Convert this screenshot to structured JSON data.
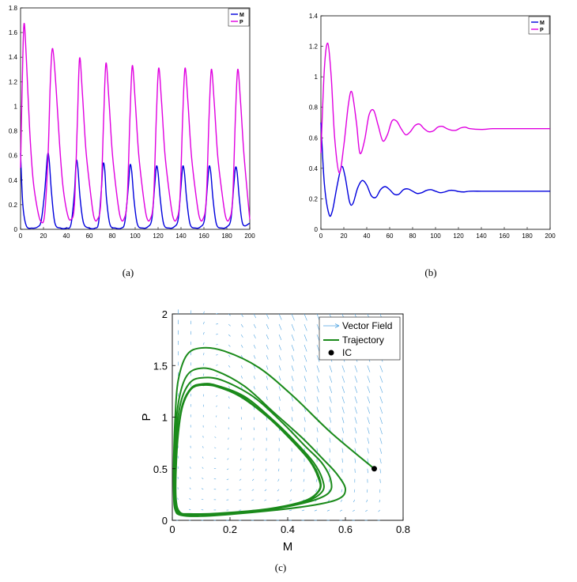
{
  "captions": {
    "a": "(a)",
    "b": "(b)",
    "c": "(c)"
  },
  "colors": {
    "M": "#0000dd",
    "P": "#e000e0",
    "trajectory": "#1a8a1a",
    "vector": "#4fa3e0",
    "ic": "#000000"
  },
  "chart_data": [
    {
      "id": "a",
      "type": "line",
      "xlim": [
        0,
        200
      ],
      "ylim": [
        0,
        1.8
      ],
      "xticks": [
        0,
        20,
        40,
        60,
        80,
        100,
        120,
        140,
        160,
        180,
        200
      ],
      "yticks": [
        0,
        0.2,
        0.4,
        0.6,
        0.8,
        1,
        1.2,
        1.4,
        1.6,
        1.8
      ],
      "legend": "top-right",
      "series": [
        {
          "name": "M",
          "color": "#0000dd",
          "x": [
            0,
            2,
            5,
            10,
            15,
            18,
            21,
            23.5,
            25,
            27,
            30,
            35,
            40,
            44,
            47,
            48.5,
            50,
            52,
            55,
            60,
            65,
            68,
            70.5,
            72,
            73.5,
            75,
            78,
            83,
            88,
            91,
            94,
            95.5,
            97,
            99,
            102,
            107,
            111,
            114.5,
            117,
            118.5,
            120,
            122,
            125,
            130,
            134,
            137.5,
            140,
            141.5,
            143,
            145,
            148,
            153,
            157,
            160.5,
            163,
            164.5,
            166,
            168,
            171,
            176,
            180,
            183.5,
            186,
            187.5,
            189,
            191,
            194,
            200
          ],
          "y": [
            0.62,
            0.2,
            0.03,
            0.01,
            0.02,
            0.07,
            0.3,
            0.6,
            0.56,
            0.3,
            0.05,
            0.01,
            0.01,
            0.04,
            0.3,
            0.55,
            0.5,
            0.25,
            0.05,
            0.01,
            0.01,
            0.05,
            0.32,
            0.53,
            0.48,
            0.25,
            0.04,
            0.01,
            0.01,
            0.06,
            0.34,
            0.52,
            0.47,
            0.24,
            0.04,
            0.01,
            0.02,
            0.08,
            0.35,
            0.51,
            0.46,
            0.24,
            0.04,
            0.01,
            0.02,
            0.08,
            0.35,
            0.51,
            0.46,
            0.24,
            0.04,
            0.01,
            0.02,
            0.08,
            0.35,
            0.51,
            0.46,
            0.24,
            0.04,
            0.01,
            0.02,
            0.08,
            0.35,
            0.5,
            0.46,
            0.24,
            0.04,
            0.05
          ]
        },
        {
          "name": "P",
          "color": "#e000e0",
          "x": [
            0,
            1.5,
            3,
            5,
            8,
            11,
            15,
            18,
            21,
            24,
            26,
            28,
            31,
            34,
            37,
            41,
            44,
            47,
            49.5,
            51.5,
            54,
            57,
            61,
            64,
            67,
            70,
            72.5,
            74.5,
            77,
            80,
            84,
            87,
            90,
            93,
            95.5,
            97.5,
            100,
            103,
            107,
            110,
            113,
            116,
            118.5,
            120.5,
            123,
            126,
            130,
            133,
            136,
            139,
            141.5,
            143.5,
            146,
            149,
            153,
            156,
            159,
            162,
            164.5,
            166.5,
            169,
            172,
            176,
            179,
            182,
            185,
            187.5,
            189.5,
            192,
            195,
            200
          ],
          "y": [
            0.5,
            1.2,
            1.67,
            1.4,
            0.8,
            0.4,
            0.15,
            0.06,
            0.12,
            0.6,
            1.2,
            1.47,
            1.15,
            0.7,
            0.35,
            0.12,
            0.08,
            0.2,
            0.85,
            1.39,
            1.1,
            0.65,
            0.3,
            0.1,
            0.08,
            0.22,
            0.9,
            1.35,
            1.07,
            0.63,
            0.28,
            0.1,
            0.08,
            0.24,
            0.92,
            1.33,
            1.05,
            0.62,
            0.28,
            0.1,
            0.08,
            0.24,
            0.92,
            1.31,
            1.04,
            0.61,
            0.28,
            0.1,
            0.08,
            0.24,
            0.92,
            1.31,
            1.04,
            0.61,
            0.28,
            0.1,
            0.08,
            0.24,
            0.92,
            1.3,
            1.03,
            0.6,
            0.28,
            0.1,
            0.08,
            0.24,
            0.92,
            1.3,
            1.03,
            0.6,
            0.08
          ]
        }
      ]
    },
    {
      "id": "b",
      "type": "line",
      "xlim": [
        0,
        200
      ],
      "ylim": [
        0,
        1.4
      ],
      "xticks": [
        0,
        20,
        40,
        60,
        80,
        100,
        120,
        140,
        160,
        180,
        200
      ],
      "yticks": [
        0,
        0.2,
        0.4,
        0.6,
        0.8,
        1,
        1.2,
        1.4
      ],
      "legend": "top-right",
      "series": [
        {
          "name": "M",
          "color": "#0000dd",
          "x": [
            0,
            3,
            7,
            10,
            14,
            18,
            21,
            25,
            28,
            32,
            36,
            40,
            44,
            48,
            52,
            56,
            60,
            64,
            68,
            72,
            76,
            80,
            84,
            88,
            92,
            96,
            100,
            104,
            108,
            112,
            116,
            120,
            125,
            130,
            140,
            150,
            160,
            170,
            180,
            190,
            200
          ],
          "y": [
            0.7,
            0.3,
            0.1,
            0.12,
            0.28,
            0.41,
            0.35,
            0.18,
            0.17,
            0.27,
            0.32,
            0.29,
            0.22,
            0.21,
            0.26,
            0.28,
            0.26,
            0.23,
            0.23,
            0.26,
            0.265,
            0.25,
            0.235,
            0.24,
            0.255,
            0.26,
            0.25,
            0.24,
            0.245,
            0.255,
            0.255,
            0.248,
            0.245,
            0.25,
            0.25,
            0.25,
            0.25,
            0.25,
            0.25,
            0.25,
            0.25
          ],
          "smooth": true
        },
        {
          "name": "P",
          "color": "#e000e0",
          "x": [
            0,
            3,
            6,
            9,
            12,
            16,
            20,
            24,
            27,
            31,
            34,
            38,
            42,
            46,
            50,
            54,
            58,
            62,
            66,
            70,
            74,
            78,
            82,
            86,
            90,
            94,
            98,
            102,
            106,
            110,
            114,
            118,
            122,
            126,
            130,
            140,
            150,
            160,
            180,
            200
          ],
          "y": [
            0.5,
            1.05,
            1.22,
            1.0,
            0.6,
            0.37,
            0.55,
            0.82,
            0.9,
            0.7,
            0.5,
            0.58,
            0.75,
            0.78,
            0.68,
            0.58,
            0.62,
            0.71,
            0.71,
            0.66,
            0.62,
            0.64,
            0.68,
            0.69,
            0.66,
            0.64,
            0.645,
            0.67,
            0.675,
            0.66,
            0.65,
            0.65,
            0.665,
            0.67,
            0.66,
            0.655,
            0.66,
            0.66,
            0.66,
            0.66
          ],
          "smooth": true
        }
      ]
    },
    {
      "id": "c",
      "type": "line",
      "xlabel": "M",
      "ylabel": "P",
      "xlim": [
        0,
        0.8
      ],
      "ylim": [
        0,
        2
      ],
      "xticks": [
        0,
        0.2,
        0.4,
        0.6,
        0.8
      ],
      "yticks": [
        0,
        0.5,
        1,
        1.5,
        2
      ],
      "legend": "top-right",
      "legend_entries": [
        "Vector Field",
        "Trajectory",
        "IC"
      ],
      "initial_condition": [
        0.7,
        0.5
      ],
      "trajectory": [
        [
          0.7,
          0.5
        ],
        [
          0.55,
          0.85
        ],
        [
          0.42,
          1.2
        ],
        [
          0.3,
          1.48
        ],
        [
          0.18,
          1.64
        ],
        [
          0.1,
          1.67
        ],
        [
          0.05,
          1.6
        ],
        [
          0.02,
          1.35
        ],
        [
          0.01,
          1.0
        ],
        [
          0.005,
          0.6
        ],
        [
          0.005,
          0.25
        ],
        [
          0.01,
          0.1
        ],
        [
          0.03,
          0.05
        ],
        [
          0.1,
          0.04
        ],
        [
          0.25,
          0.07
        ],
        [
          0.45,
          0.13
        ],
        [
          0.57,
          0.2
        ],
        [
          0.6,
          0.3
        ],
        [
          0.57,
          0.45
        ],
        [
          0.52,
          0.6
        ],
        [
          0.45,
          0.8
        ],
        [
          0.35,
          1.05
        ],
        [
          0.25,
          1.3
        ],
        [
          0.15,
          1.45
        ],
        [
          0.09,
          1.47
        ],
        [
          0.05,
          1.4
        ],
        [
          0.025,
          1.2
        ],
        [
          0.012,
          0.9
        ],
        [
          0.008,
          0.5
        ],
        [
          0.008,
          0.2
        ],
        [
          0.015,
          0.08
        ],
        [
          0.04,
          0.05
        ],
        [
          0.12,
          0.05
        ],
        [
          0.3,
          0.09
        ],
        [
          0.46,
          0.17
        ],
        [
          0.54,
          0.26
        ],
        [
          0.55,
          0.38
        ],
        [
          0.52,
          0.55
        ],
        [
          0.46,
          0.72
        ],
        [
          0.38,
          0.95
        ],
        [
          0.28,
          1.2
        ],
        [
          0.17,
          1.36
        ],
        [
          0.1,
          1.38
        ],
        [
          0.06,
          1.33
        ],
        [
          0.03,
          1.15
        ],
        [
          0.015,
          0.85
        ],
        [
          0.01,
          0.5
        ],
        [
          0.01,
          0.2
        ],
        [
          0.02,
          0.08
        ],
        [
          0.05,
          0.055
        ],
        [
          0.15,
          0.06
        ],
        [
          0.32,
          0.1
        ],
        [
          0.46,
          0.18
        ],
        [
          0.52,
          0.28
        ],
        [
          0.52,
          0.4
        ],
        [
          0.49,
          0.56
        ],
        [
          0.43,
          0.75
        ],
        [
          0.35,
          0.97
        ],
        [
          0.25,
          1.2
        ],
        [
          0.15,
          1.31
        ],
        [
          0.1,
          1.32
        ],
        [
          0.065,
          1.28
        ],
        [
          0.035,
          1.12
        ],
        [
          0.02,
          0.85
        ],
        [
          0.012,
          0.5
        ],
        [
          0.012,
          0.2
        ],
        [
          0.025,
          0.08
        ],
        [
          0.06,
          0.06
        ],
        [
          0.16,
          0.065
        ],
        [
          0.33,
          0.11
        ],
        [
          0.46,
          0.19
        ],
        [
          0.51,
          0.29
        ],
        [
          0.51,
          0.41
        ],
        [
          0.48,
          0.57
        ],
        [
          0.42,
          0.76
        ],
        [
          0.34,
          0.98
        ],
        [
          0.24,
          1.2
        ],
        [
          0.15,
          1.3
        ],
        [
          0.1,
          1.31
        ],
        [
          0.065,
          1.27
        ],
        [
          0.036,
          1.11
        ],
        [
          0.021,
          0.85
        ],
        [
          0.013,
          0.5
        ],
        [
          0.013,
          0.2
        ],
        [
          0.026,
          0.08
        ],
        [
          0.06,
          0.062
        ],
        [
          0.16,
          0.068
        ],
        [
          0.33,
          0.11
        ],
        [
          0.46,
          0.19
        ],
        [
          0.51,
          0.3
        ],
        [
          0.505,
          0.42
        ],
        [
          0.475,
          0.58
        ],
        [
          0.415,
          0.77
        ],
        [
          0.335,
          0.99
        ],
        [
          0.235,
          1.2
        ],
        [
          0.148,
          1.3
        ],
        [
          0.1,
          1.31
        ]
      ]
    }
  ]
}
